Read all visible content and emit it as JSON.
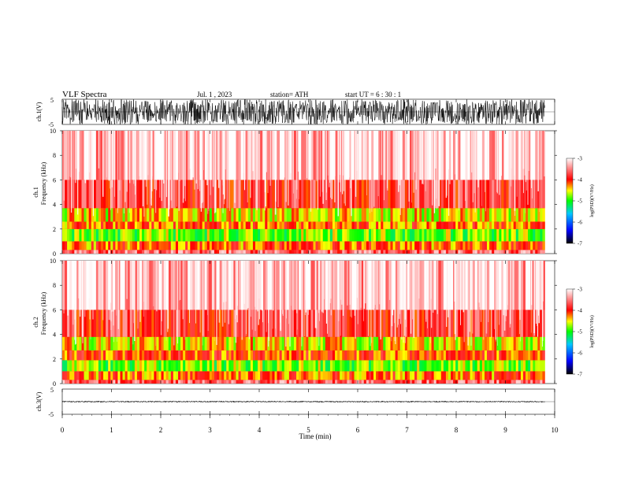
{
  "header": {
    "title": "VLF  Spectra",
    "date": "Jul.  1  , 2023",
    "station": "station= ATH",
    "start": "start  UT  =    6  : 30 : 1"
  },
  "colors": {
    "spectrogram_background": "#ff3a2c",
    "colormap": [
      "#000000",
      "#0000ff",
      "#00c8ff",
      "#00ff00",
      "#ffff00",
      "#ff0000",
      "#ffffff"
    ]
  },
  "chart_data": [
    {
      "id": "ch1-waveform",
      "type": "line",
      "ylabel": "ch.1(V)",
      "ylim": [
        -5,
        5
      ],
      "yticks": [
        "5",
        "-5"
      ],
      "xlim": [
        0,
        10
      ],
      "description_values": {
        "amplitude_range_V": [
          -5,
          5
        ]
      }
    },
    {
      "id": "ch1-spectrogram",
      "type": "heatmap",
      "ylabel_channel": "ch.1",
      "ylabel": "Frequency  (kHz)",
      "ylim": [
        0,
        10
      ],
      "yticks": [
        "0",
        "2",
        "4",
        "6",
        "8",
        "10"
      ],
      "xlim": [
        0,
        10
      ],
      "color_range": [
        -7,
        -3
      ],
      "band_levels_by_kHz": [
        {
          "f": [
            0.0,
            0.3
          ],
          "level": -3.6
        },
        {
          "f": [
            0.3,
            1.0
          ],
          "level": -4.2
        },
        {
          "f": [
            1.0,
            2.0
          ],
          "level": -4.8
        },
        {
          "f": [
            2.0,
            2.6
          ],
          "level": -4.2
        },
        {
          "f": [
            2.6,
            3.7
          ],
          "level": -4.5
        },
        {
          "f": [
            3.7,
            6.0
          ],
          "level": -3.8
        },
        {
          "f": [
            6.0,
            10.0
          ],
          "level": -3.3
        }
      ]
    },
    {
      "id": "ch2-spectrogram",
      "type": "heatmap",
      "ylabel_channel": "ch.2",
      "ylabel": "Frequency  (kHz)",
      "ylim": [
        0,
        10
      ],
      "yticks": [
        "0",
        "2",
        "4",
        "6",
        "8",
        "10"
      ],
      "xlim": [
        0,
        10
      ],
      "color_range": [
        -7,
        -3
      ],
      "band_levels_by_kHz": [
        {
          "f": [
            0.0,
            0.3
          ],
          "level": -3.6
        },
        {
          "f": [
            0.3,
            1.0
          ],
          "level": -4.2
        },
        {
          "f": [
            1.0,
            1.9
          ],
          "level": -4.8
        },
        {
          "f": [
            1.9,
            2.7
          ],
          "level": -4.1
        },
        {
          "f": [
            2.7,
            3.8
          ],
          "level": -4.5
        },
        {
          "f": [
            3.8,
            6.0
          ],
          "level": -3.8
        },
        {
          "f": [
            6.0,
            10.0
          ],
          "level": -3.3
        }
      ]
    },
    {
      "id": "ch3-waveform",
      "type": "line",
      "ylabel": "ch.3(V)",
      "ylim": [
        -5,
        5
      ],
      "yticks": [
        "5",
        "-5"
      ],
      "xlim": [
        0,
        10
      ],
      "description_values": {
        "amplitude_range_V": [
          -0.3,
          0.3
        ]
      }
    }
  ],
  "x_axis": {
    "label": "Time  (min)",
    "ticks": [
      "0",
      "1",
      "2",
      "3",
      "4",
      "5",
      "6",
      "7",
      "8",
      "9",
      "10"
    ],
    "data_end_min": 9.8
  },
  "colorbar": {
    "label": "log(PSD)(V²/Hz)",
    "ticks": [
      "-3",
      "-4",
      "-5",
      "-6",
      "-7"
    ]
  }
}
